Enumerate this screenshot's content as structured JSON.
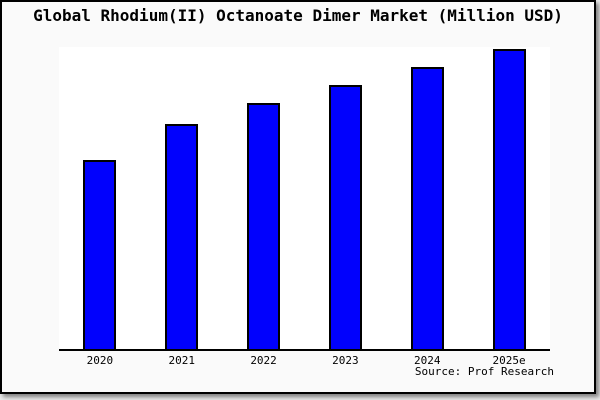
{
  "chart_data": {
    "type": "bar",
    "title": "Global Rhodium(II) Octanoate Dimer Market (Million USD)",
    "categories": [
      "2020",
      "2021",
      "2022",
      "2023",
      "2024",
      "2025e"
    ],
    "values": [
      63,
      75,
      82,
      88,
      94,
      100
    ],
    "ylim": [
      0,
      101
    ],
    "xlabel": "",
    "ylabel": "",
    "y_axis_labels_visible": false,
    "grid": false,
    "legend": "none",
    "bar_color": "#0101fd",
    "bar_border_color": "#000000"
  },
  "source_label": "Source: Prof Research",
  "colors": {
    "page_bg": "#e9e9e9",
    "figure_bg": "#fafafa",
    "plot_bg": "#ffffff",
    "frame_border": "#000000",
    "axis_line": "#000000",
    "text": "#000000"
  }
}
